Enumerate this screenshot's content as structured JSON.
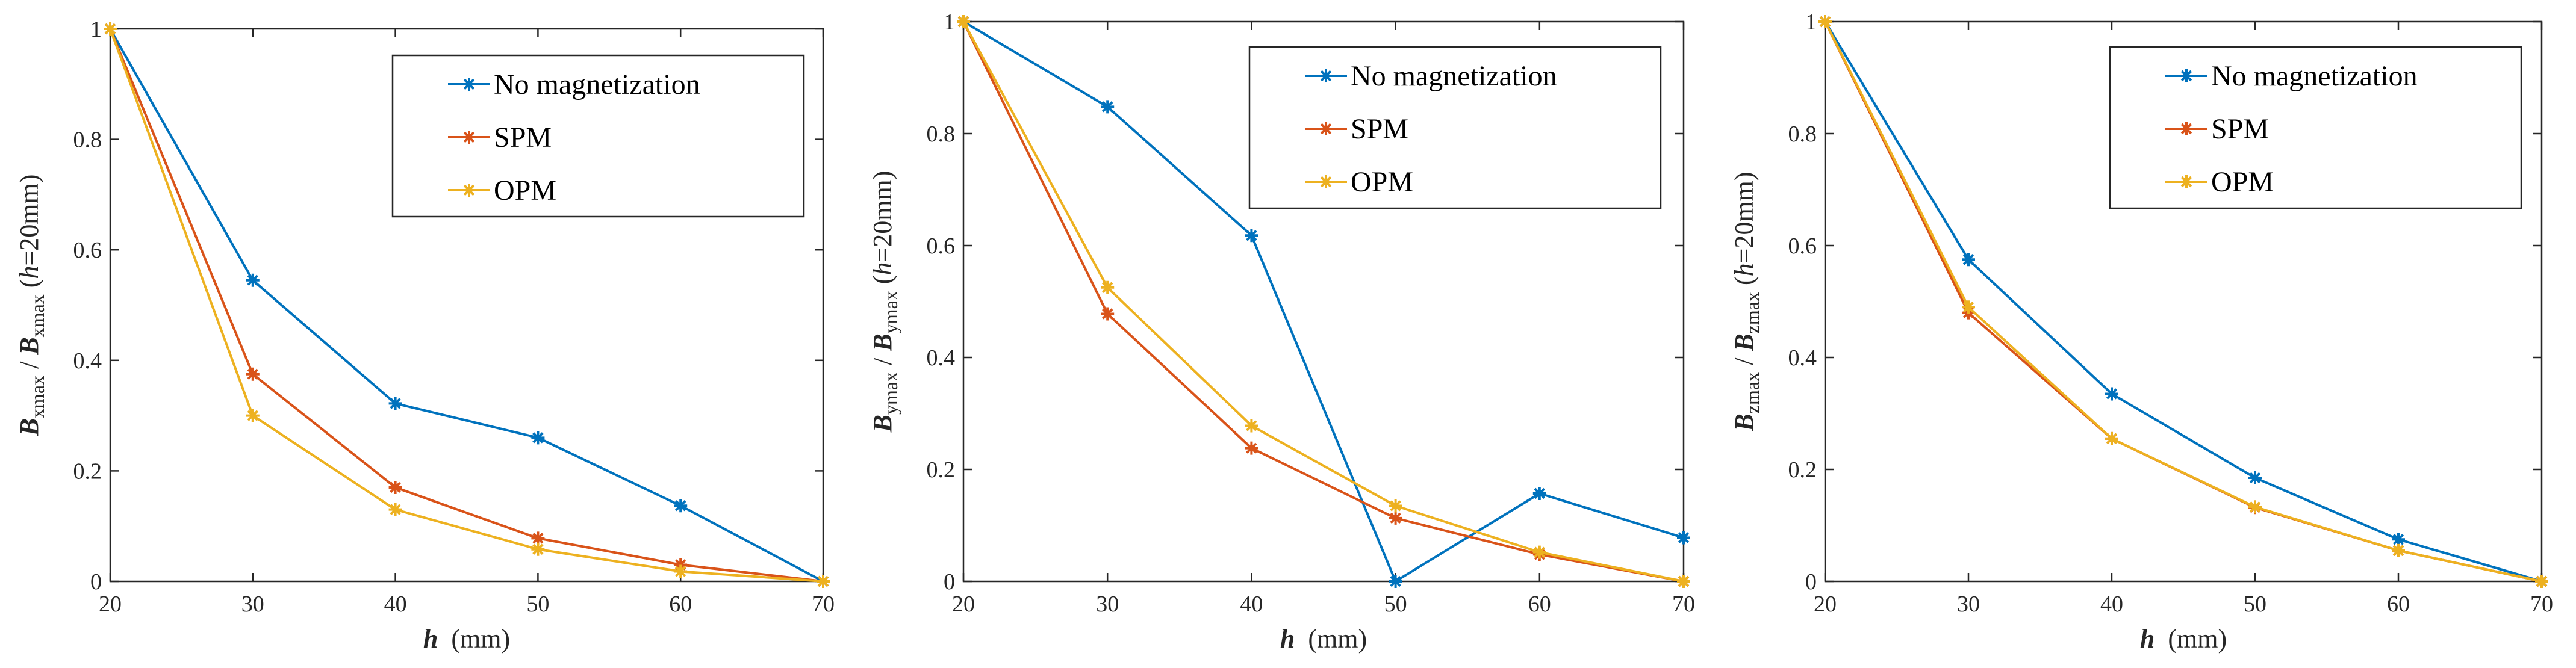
{
  "chart_data": [
    {
      "type": "line",
      "x": [
        20,
        30,
        40,
        50,
        60,
        70
      ],
      "xlim": [
        20,
        70
      ],
      "ylim": [
        0,
        1
      ],
      "xticks": [
        "20",
        "30",
        "40",
        "50",
        "60",
        "70"
      ],
      "yticks": [
        "0",
        "0.2",
        "0.4",
        "0.6",
        "0.8",
        "1"
      ],
      "xlabel": {
        "var": "h",
        "unit": "(mm)"
      },
      "ylabel": {
        "num_var": "B",
        "num_sub": "xmax",
        "sep": "/",
        "den_var": "B",
        "den_sub": "xmax",
        "cond_open": "(",
        "cond_var": "h",
        "cond_rest": "=20mm)"
      },
      "legend_position": "top-right",
      "series": [
        {
          "name": "No magnetization",
          "color": "#0072BD",
          "values": [
            1.0,
            0.545,
            0.322,
            0.26,
            0.137,
            0.0
          ]
        },
        {
          "name": "SPM",
          "color": "#D95319",
          "values": [
            1.0,
            0.375,
            0.17,
            0.078,
            0.03,
            0.0
          ]
        },
        {
          "name": "OPM",
          "color": "#EDB120",
          "values": [
            1.0,
            0.3,
            0.13,
            0.058,
            0.018,
            0.0
          ]
        }
      ]
    },
    {
      "type": "line",
      "x": [
        20,
        30,
        40,
        50,
        60,
        70
      ],
      "xlim": [
        20,
        70
      ],
      "ylim": [
        0,
        1
      ],
      "xticks": [
        "20",
        "30",
        "40",
        "50",
        "60",
        "70"
      ],
      "yticks": [
        "0",
        "0.2",
        "0.4",
        "0.6",
        "0.8",
        "1"
      ],
      "xlabel": {
        "var": "h",
        "unit": "(mm)"
      },
      "ylabel": {
        "num_var": "B",
        "num_sub": "ymax",
        "sep": "/",
        "den_var": "B",
        "den_sub": "ymax",
        "cond_open": "(",
        "cond_var": "h",
        "cond_rest": "=20mm)"
      },
      "legend_position": "top-right",
      "series": [
        {
          "name": "No magnetization",
          "color": "#0072BD",
          "values": [
            1.0,
            0.848,
            0.618,
            0.0,
            0.157,
            0.078
          ]
        },
        {
          "name": "SPM",
          "color": "#D95319",
          "values": [
            1.0,
            0.478,
            0.238,
            0.113,
            0.048,
            0.0
          ]
        },
        {
          "name": "OPM",
          "color": "#EDB120",
          "values": [
            1.0,
            0.525,
            0.278,
            0.135,
            0.052,
            0.0
          ]
        }
      ]
    },
    {
      "type": "line",
      "x": [
        20,
        30,
        40,
        50,
        60,
        70
      ],
      "xlim": [
        20,
        70
      ],
      "ylim": [
        0,
        1
      ],
      "xticks": [
        "20",
        "30",
        "40",
        "50",
        "60",
        "70"
      ],
      "yticks": [
        "0",
        "0.2",
        "0.4",
        "0.6",
        "0.8",
        "1"
      ],
      "xlabel": {
        "var": "h",
        "unit": "(mm)"
      },
      "ylabel": {
        "num_var": "B",
        "num_sub": "zmax",
        "sep": "/",
        "den_var": "B",
        "den_sub": "zmax",
        "cond_open": "(",
        "cond_var": "h",
        "cond_rest": "=20mm)"
      },
      "legend_position": "top-right",
      "series": [
        {
          "name": "No magnetization",
          "color": "#0072BD",
          "values": [
            1.0,
            0.575,
            0.335,
            0.185,
            0.075,
            0.0
          ]
        },
        {
          "name": "SPM",
          "color": "#D95319",
          "values": [
            1.0,
            0.48,
            0.255,
            0.132,
            0.055,
            0.0
          ]
        },
        {
          "name": "OPM",
          "color": "#EDB120",
          "values": [
            1.0,
            0.49,
            0.255,
            0.133,
            0.055,
            0.0
          ]
        }
      ]
    }
  ]
}
